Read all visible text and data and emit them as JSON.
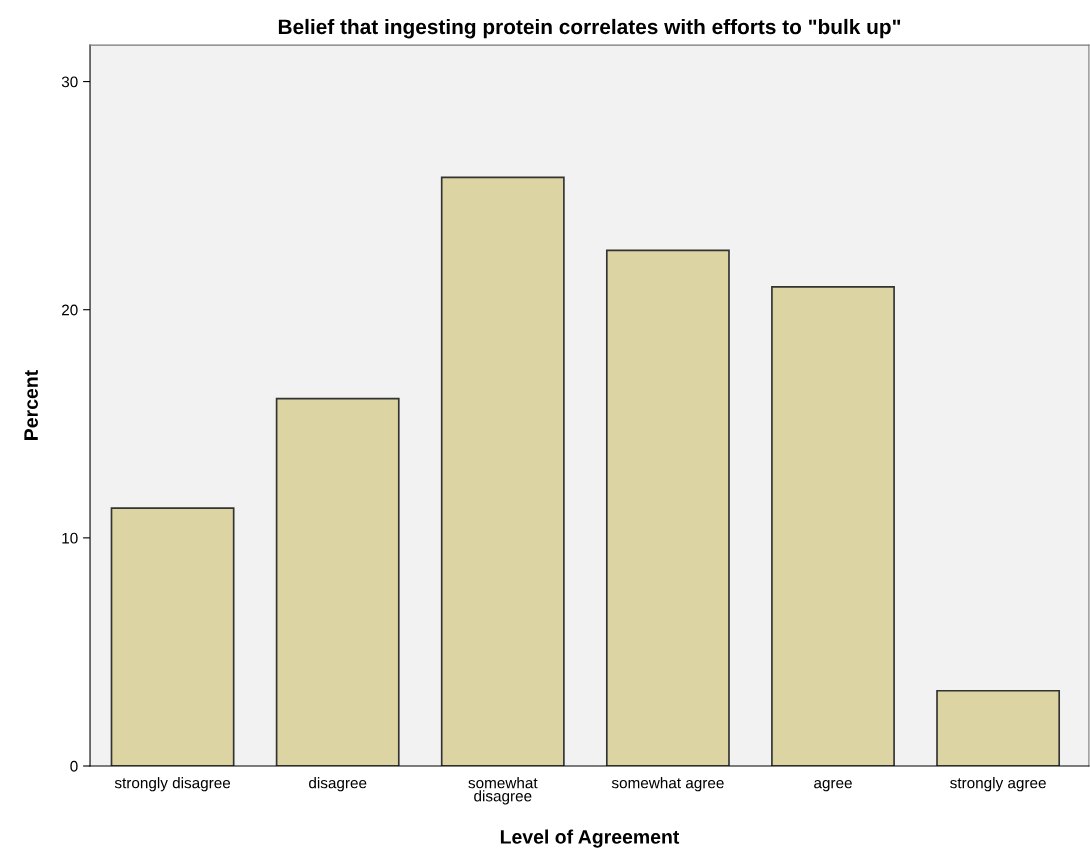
{
  "chart_data": {
    "type": "bar",
    "title": "Belief that ingesting protein correlates with efforts to \"bulk up\"",
    "xlabel": "Level of Agreement",
    "ylabel": "Percent",
    "categories": [
      "strongly disagree",
      "disagree",
      "somewhat\ndisagree",
      "somewhat agree",
      "agree",
      "strongly agree"
    ],
    "values": [
      11.3,
      16.1,
      25.8,
      22.6,
      21.0,
      3.3
    ],
    "color": "#dcd4a2",
    "ylim": [
      0,
      31.6
    ],
    "yticks": [
      0,
      10,
      20,
      30
    ],
    "grid": false,
    "legend": false
  }
}
